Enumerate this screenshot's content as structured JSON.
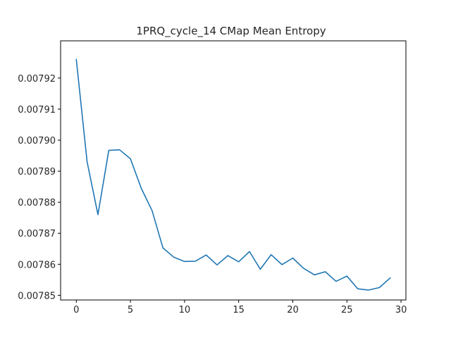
{
  "chart_data": {
    "type": "line",
    "title": "1PRQ_cycle_14 CMap Mean Entropy",
    "xlabel": "",
    "ylabel": "",
    "xlim": [
      -1.45,
      30.45
    ],
    "ylim": [
      0.0078485,
      0.007932
    ],
    "xticks": [
      0,
      5,
      10,
      15,
      20,
      25,
      30
    ],
    "yticks": [
      0.00785,
      0.00786,
      0.00787,
      0.00788,
      0.00789,
      0.0079,
      0.00791,
      0.00792
    ],
    "ytick_labels": [
      "0.00785",
      "0.00786",
      "0.00787",
      "0.00788",
      "0.00789",
      "0.00790",
      "0.00791",
      "0.00792"
    ],
    "series_color": "#1f77b4",
    "grid": false,
    "x": [
      0,
      1,
      2,
      3,
      4,
      5,
      6,
      7,
      8,
      9,
      10,
      11,
      12,
      13,
      14,
      15,
      16,
      17,
      18,
      19,
      20,
      21,
      22,
      23,
      24,
      25,
      26,
      27,
      28,
      29
    ],
    "y": [
      0.007926,
      0.007893,
      0.007876,
      0.0078967,
      0.0078969,
      0.007894,
      0.0078845,
      0.0078773,
      0.0078653,
      0.0078623,
      0.0078609,
      0.007861,
      0.007863,
      0.0078598,
      0.0078628,
      0.0078608,
      0.0078641,
      0.0078584,
      0.0078631,
      0.0078599,
      0.007862,
      0.0078587,
      0.0078566,
      0.0078576,
      0.0078545,
      0.0078562,
      0.0078521,
      0.0078517,
      0.0078525,
      0.0078556
    ]
  }
}
